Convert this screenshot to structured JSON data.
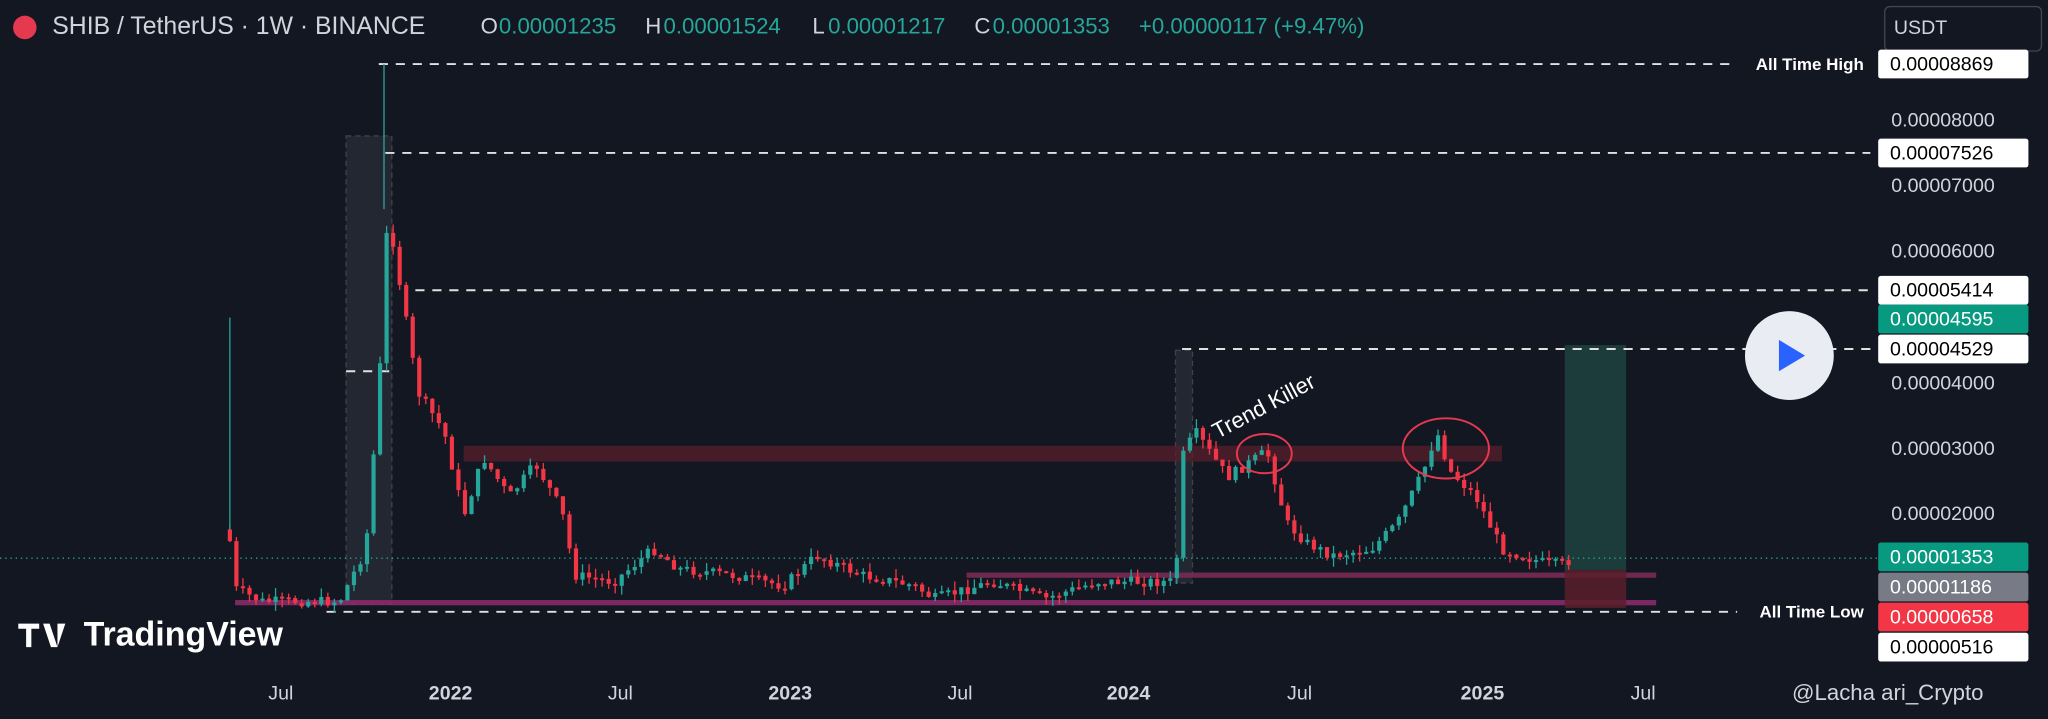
{
  "header": {
    "symbol": "SHIB / TetherUS · 1W · BINANCE",
    "ohlc": [
      {
        "key": "O",
        "value": "0.00001235"
      },
      {
        "key": "H",
        "value": "0.00001524"
      },
      {
        "key": "L",
        "value": "0.00001217"
      },
      {
        "key": "C",
        "value": "0.00001353"
      }
    ],
    "change": "+0.00000117 (+9.47%)"
  },
  "currency": "USDT",
  "price_axis": [
    "0.00008000",
    "0.00007000",
    "0.00006000",
    "0.00004000",
    "0.00003000",
    "0.00002000"
  ],
  "price_labels": [
    "0.00008869",
    "0.00007526",
    "0.00005414",
    "0.00004595",
    "0.00004529",
    "0.00001353",
    "0.00001186",
    "0.00000658",
    "0.00000516"
  ],
  "time_axis": [
    "Jul",
    "2022",
    "Jul",
    "2023",
    "Jul",
    "2024",
    "Jul",
    "2025",
    "Jul"
  ],
  "annotations": {
    "ath": "All Time High",
    "atl": "All Time Low",
    "trend": "Trend Killer"
  },
  "branding": "TradingView",
  "watermark": "@Lacha   ari_Crypto"
}
